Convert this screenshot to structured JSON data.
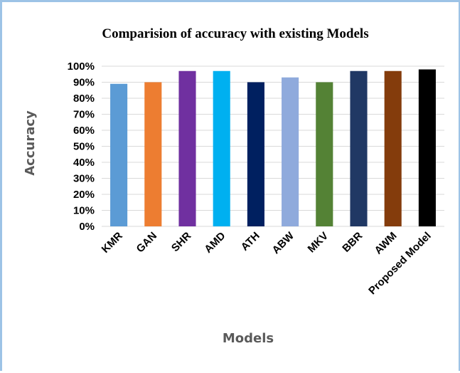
{
  "chart_data": {
    "type": "bar",
    "title": "Comparision of accuracy with existing Models",
    "xlabel": "Models",
    "ylabel": "Accuracy",
    "ylim": [
      0,
      100
    ],
    "ytick_step": 10,
    "ytick_suffix": "%",
    "grid": true,
    "categories": [
      "KMR",
      "GAN",
      "SHR",
      "AMD",
      "ATH",
      "ABW",
      "MKV",
      "BBR",
      "AWM",
      "Proposed Model"
    ],
    "values": [
      89,
      90,
      97,
      97,
      90,
      93,
      90,
      97,
      97,
      98
    ],
    "colors": [
      "#5b9bd5",
      "#ed7d31",
      "#7030a0",
      "#00b0f0",
      "#002060",
      "#8faadc",
      "#548235",
      "#203864",
      "#843c0c",
      "#000000"
    ],
    "gridline_color": "#d9d9d9",
    "frame_color": "#9dc3e6"
  }
}
